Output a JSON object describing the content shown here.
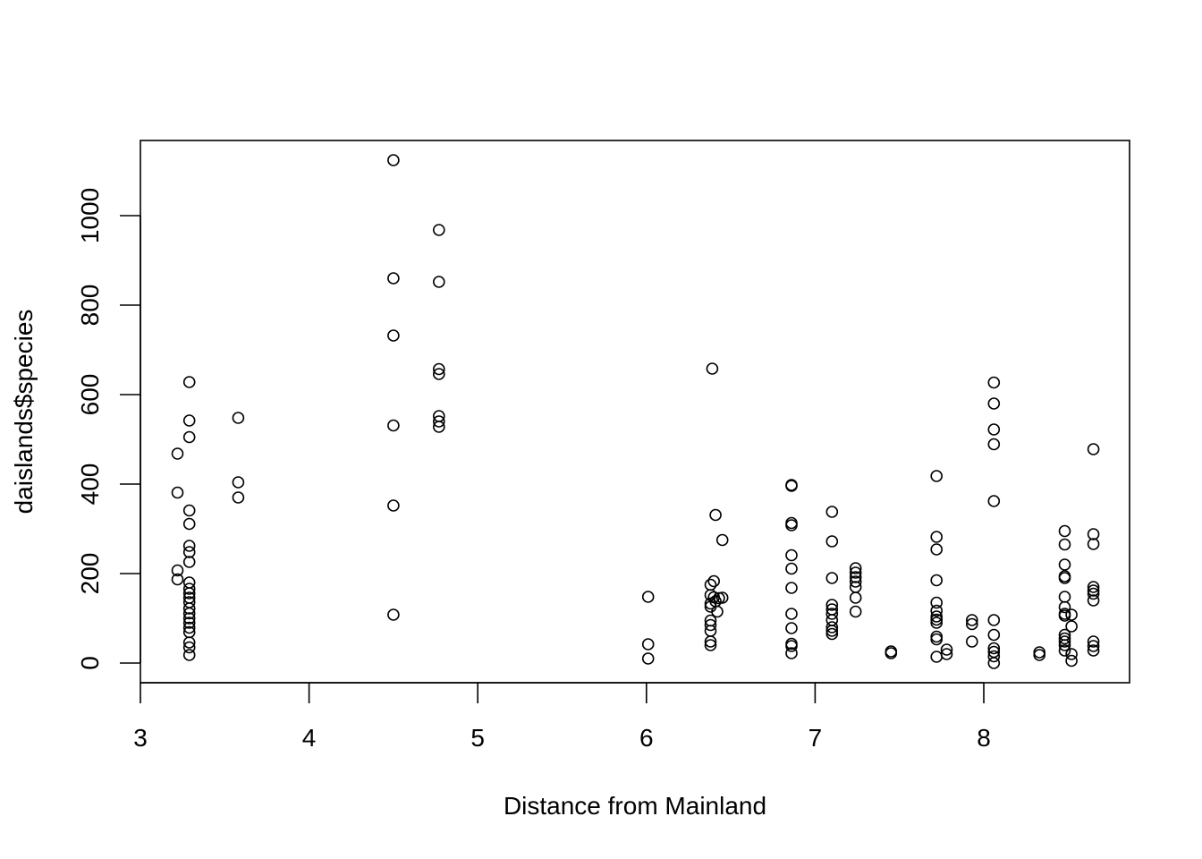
{
  "chart_data": {
    "type": "scatter",
    "title": "",
    "xlabel": "Distance from Mainland",
    "ylabel": "daislands$species",
    "xlim": [
      3,
      8.85
    ],
    "ylim": [
      -45,
      1165
    ],
    "x_ticks": [
      "3",
      "4",
      "5",
      "6",
      "7",
      "8"
    ],
    "y_ticks": [
      "0",
      "200",
      "400",
      "600",
      "800",
      "1000"
    ],
    "grid": false,
    "legend": "none",
    "marker_color": "#000000",
    "points": [
      [
        3.22,
        468
      ],
      [
        3.22,
        381
      ],
      [
        3.22,
        207
      ],
      [
        3.22,
        187
      ],
      [
        3.29,
        628
      ],
      [
        3.29,
        542
      ],
      [
        3.29,
        505
      ],
      [
        3.29,
        341
      ],
      [
        3.29,
        311
      ],
      [
        3.29,
        262
      ],
      [
        3.29,
        248
      ],
      [
        3.29,
        226
      ],
      [
        3.29,
        180
      ],
      [
        3.29,
        166
      ],
      [
        3.29,
        156
      ],
      [
        3.29,
        146
      ],
      [
        3.29,
        136
      ],
      [
        3.29,
        122
      ],
      [
        3.29,
        111
      ],
      [
        3.29,
        100
      ],
      [
        3.29,
        90
      ],
      [
        3.29,
        79
      ],
      [
        3.29,
        69
      ],
      [
        3.29,
        46
      ],
      [
        3.29,
        35
      ],
      [
        3.29,
        18
      ],
      [
        3.58,
        548
      ],
      [
        3.58,
        404
      ],
      [
        3.58,
        370
      ],
      [
        4.5,
        1124
      ],
      [
        4.5,
        860
      ],
      [
        4.5,
        732
      ],
      [
        4.5,
        531
      ],
      [
        4.5,
        352
      ],
      [
        4.5,
        108
      ],
      [
        4.77,
        968
      ],
      [
        4.77,
        852
      ],
      [
        4.77,
        657
      ],
      [
        4.77,
        646
      ],
      [
        4.77,
        552
      ],
      [
        4.77,
        540
      ],
      [
        4.77,
        528
      ],
      [
        6.01,
        148
      ],
      [
        6.01,
        42
      ],
      [
        6.01,
        10
      ],
      [
        6.39,
        658
      ],
      [
        6.41,
        331
      ],
      [
        6.45,
        275
      ],
      [
        6.4,
        183
      ],
      [
        6.38,
        175
      ],
      [
        6.38,
        152
      ],
      [
        6.4,
        147
      ],
      [
        6.43,
        145
      ],
      [
        6.45,
        146
      ],
      [
        6.38,
        133
      ],
      [
        6.41,
        138
      ],
      [
        6.38,
        126
      ],
      [
        6.42,
        115
      ],
      [
        6.38,
        95
      ],
      [
        6.38,
        85
      ],
      [
        6.38,
        72
      ],
      [
        6.38,
        48
      ],
      [
        6.38,
        40
      ],
      [
        6.86,
        398
      ],
      [
        6.86,
        396
      ],
      [
        6.86,
        313
      ],
      [
        6.86,
        308
      ],
      [
        6.86,
        241
      ],
      [
        6.86,
        211
      ],
      [
        6.86,
        168
      ],
      [
        6.86,
        110
      ],
      [
        6.86,
        78
      ],
      [
        6.86,
        43
      ],
      [
        6.86,
        38
      ],
      [
        6.86,
        22
      ],
      [
        7.1,
        338
      ],
      [
        7.1,
        272
      ],
      [
        7.1,
        190
      ],
      [
        7.1,
        130
      ],
      [
        7.1,
        120
      ],
      [
        7.1,
        110
      ],
      [
        7.1,
        96
      ],
      [
        7.1,
        80
      ],
      [
        7.1,
        72
      ],
      [
        7.1,
        65
      ],
      [
        7.24,
        212
      ],
      [
        7.24,
        202
      ],
      [
        7.24,
        192
      ],
      [
        7.24,
        182
      ],
      [
        7.24,
        170
      ],
      [
        7.24,
        146
      ],
      [
        7.24,
        115
      ],
      [
        7.45,
        26
      ],
      [
        7.45,
        22
      ],
      [
        7.72,
        418
      ],
      [
        7.72,
        282
      ],
      [
        7.72,
        254
      ],
      [
        7.72,
        185
      ],
      [
        7.72,
        135
      ],
      [
        7.72,
        117
      ],
      [
        7.72,
        104
      ],
      [
        7.72,
        97
      ],
      [
        7.72,
        90
      ],
      [
        7.72,
        59
      ],
      [
        7.72,
        53
      ],
      [
        7.72,
        14
      ],
      [
        7.78,
        30
      ],
      [
        7.78,
        20
      ],
      [
        7.93,
        96
      ],
      [
        7.93,
        87
      ],
      [
        7.93,
        48
      ],
      [
        8.06,
        627
      ],
      [
        8.06,
        580
      ],
      [
        8.06,
        522
      ],
      [
        8.06,
        489
      ],
      [
        8.06,
        362
      ],
      [
        8.06,
        96
      ],
      [
        8.06,
        63
      ],
      [
        8.06,
        33
      ],
      [
        8.06,
        25
      ],
      [
        8.06,
        15
      ],
      [
        8.06,
        0
      ],
      [
        8.33,
        24
      ],
      [
        8.33,
        18
      ],
      [
        8.48,
        295
      ],
      [
        8.48,
        265
      ],
      [
        8.48,
        220
      ],
      [
        8.48,
        194
      ],
      [
        8.48,
        190
      ],
      [
        8.48,
        148
      ],
      [
        8.48,
        125
      ],
      [
        8.48,
        110
      ],
      [
        8.48,
        106
      ],
      [
        8.48,
        63
      ],
      [
        8.48,
        55
      ],
      [
        8.48,
        48
      ],
      [
        8.48,
        40
      ],
      [
        8.48,
        28
      ],
      [
        8.52,
        108
      ],
      [
        8.52,
        82
      ],
      [
        8.52,
        20
      ],
      [
        8.52,
        5
      ],
      [
        8.65,
        478
      ],
      [
        8.65,
        288
      ],
      [
        8.65,
        266
      ],
      [
        8.65,
        170
      ],
      [
        8.65,
        162
      ],
      [
        8.65,
        155
      ],
      [
        8.65,
        140
      ],
      [
        8.65,
        48
      ],
      [
        8.65,
        38
      ],
      [
        8.65,
        28
      ]
    ]
  }
}
